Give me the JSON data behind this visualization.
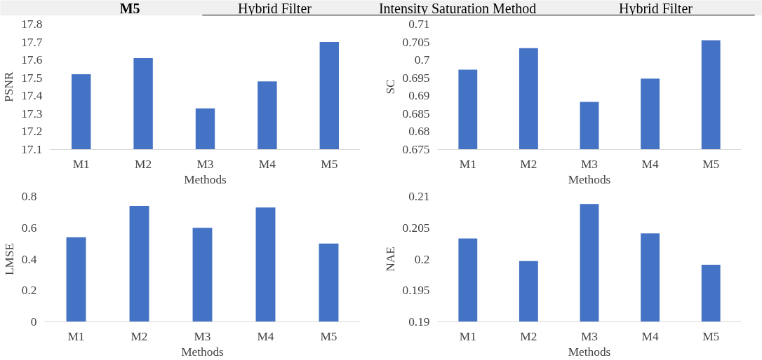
{
  "chart_data": [
    {
      "type": "other",
      "annotations": [
        "M5",
        "Hybrid Filter",
        "Intensity Saturation Method",
        "Hybrid Filter"
      ]
    },
    {
      "type": "bar",
      "categories": [
        "M1",
        "M2",
        "M3",
        "M4",
        "M5"
      ],
      "values": [
        17.52,
        17.61,
        17.33,
        17.48,
        17.7
      ],
      "color": "#4472c4",
      "xlabel": "Methods",
      "ylabel": "PSNR",
      "ylim": [
        17.1,
        17.8
      ],
      "yticks": [
        17.1,
        17.2,
        17.3,
        17.4,
        17.5,
        17.6,
        17.7,
        17.8
      ]
    },
    {
      "type": "bar",
      "categories": [
        "M1",
        "M2",
        "M3",
        "M4",
        "M5"
      ],
      "values": [
        0.6973,
        0.7033,
        0.6883,
        0.6948,
        0.7055
      ],
      "color": "#4472c4",
      "xlabel": "Methods",
      "ylabel": "SC",
      "ylim": [
        0.675,
        0.71
      ],
      "yticks": [
        0.675,
        0.68,
        0.685,
        0.69,
        0.695,
        0.7,
        0.705,
        0.71
      ]
    },
    {
      "type": "bar",
      "categories": [
        "M1",
        "M2",
        "M3",
        "M4",
        "M5"
      ],
      "values": [
        0.54,
        0.74,
        0.6,
        0.73,
        0.5
      ],
      "color": "#4472c4",
      "xlabel": "Methods",
      "ylabel": "LMSE",
      "ylim": [
        0,
        0.8
      ],
      "yticks": [
        0,
        0.2,
        0.4,
        0.6,
        0.8
      ]
    },
    {
      "type": "bar",
      "categories": [
        "M1",
        "M2",
        "M3",
        "M4",
        "M5"
      ],
      "values": [
        0.2033,
        0.1997,
        0.2088,
        0.2041,
        0.1991
      ],
      "color": "#4472c4",
      "xlabel": "Methods",
      "ylabel": "NAE",
      "ylim": [
        0.19,
        0.21
      ],
      "yticks": [
        0.19,
        0.195,
        0.2,
        0.205,
        0.21
      ]
    }
  ]
}
